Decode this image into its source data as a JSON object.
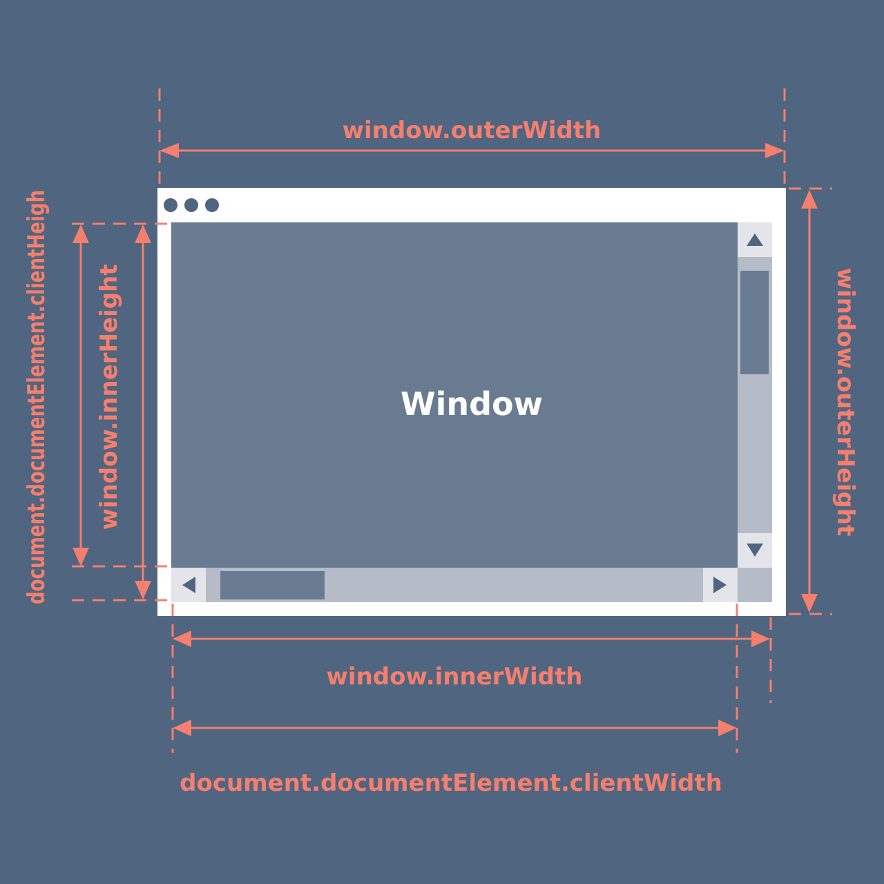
{
  "window_label": "Window",
  "labels": {
    "outer_width": "window.outerWidth",
    "outer_height": "window.outerHeight",
    "inner_width": "window.innerWidth",
    "inner_height": "window.innerHeight",
    "client_width": "document.documentElement.clientWidth",
    "client_height": "document.documentElement.clientHeigh"
  },
  "colors": {
    "background": "#50657f",
    "accent": "#f57f6e",
    "frame": "#ffffff",
    "viewport": "#697b91",
    "scrollbar_track": "#b6bcc7",
    "scrollbar_button": "#e3e5ea",
    "scrollbar_thumb": "#697b91",
    "dots": "#50657f"
  },
  "icons": {
    "window_controls": "three-dots-icon",
    "scroll_up": "triangle-up-icon",
    "scroll_down": "triangle-down-icon",
    "scroll_left": "triangle-left-icon",
    "scroll_right": "triangle-right-icon"
  }
}
